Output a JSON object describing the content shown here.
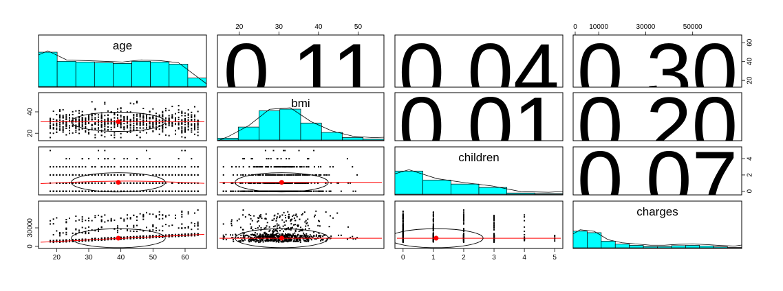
{
  "chart_data": {
    "type": "scatter",
    "variables": [
      "age",
      "bmi",
      "children",
      "charges"
    ],
    "correlations": [
      {
        "row": "age",
        "col": "bmi",
        "value": "0.11"
      },
      {
        "row": "age",
        "col": "children",
        "value": "0.04"
      },
      {
        "row": "age",
        "col": "charges",
        "value": "0.30"
      },
      {
        "row": "bmi",
        "col": "children",
        "value": "0.01"
      },
      {
        "row": "bmi",
        "col": "charges",
        "value": "0.20"
      },
      {
        "row": "children",
        "col": "charges",
        "value": "0.07"
      }
    ],
    "ranges": {
      "age": [
        15,
        66
      ],
      "bmi": [
        15,
        56
      ],
      "children": [
        -0.2,
        5.2
      ],
      "charges": [
        0,
        70000
      ]
    },
    "ticks": {
      "age": [
        "20",
        "30",
        "40",
        "50",
        "60"
      ],
      "bmi": [
        "20",
        "30",
        "40",
        "50"
      ],
      "children": [
        "0",
        "1",
        "2",
        "3",
        "4",
        "5"
      ],
      "charges": [
        "0",
        "10000",
        "30000",
        "50000"
      ],
      "age_right": [
        "20",
        "40",
        "60"
      ],
      "bmi_left": [
        "20",
        "40"
      ],
      "children_right": [
        "0",
        "2",
        "4"
      ],
      "charges_left": [
        "0",
        "30000"
      ]
    },
    "histograms": {
      "age": [
        0.98,
        0.72,
        0.7,
        0.68,
        0.66,
        0.72,
        0.7,
        0.64,
        0.24
      ],
      "bmi": [
        0.06,
        0.42,
        0.95,
        1.0,
        0.55,
        0.25,
        0.08,
        0.03
      ],
      "children": [
        0.75,
        0.46,
        0.33,
        0.22,
        0.04,
        0.02
      ],
      "charges": [
        0.55,
        0.5,
        0.22,
        0.12,
        0.08,
        0.04,
        0.04,
        0.07,
        0.08,
        0.06,
        0.03,
        0.01
      ]
    },
    "means": {
      "age": 39.2,
      "bmi": 30.7,
      "children": 1.09,
      "charges": 13270
    }
  }
}
